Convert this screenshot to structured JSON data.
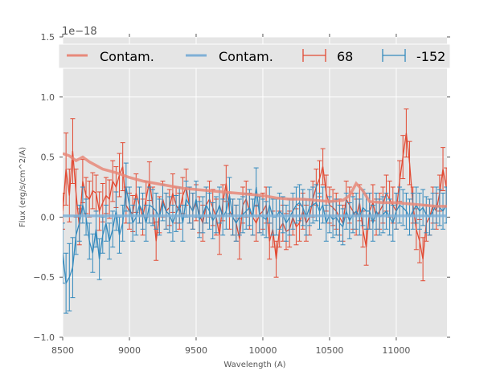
{
  "chart_data": {
    "type": "line",
    "title": "",
    "xlabel": "Wavelength (A)",
    "ylabel": "Flux (erg/s/cm^2/A)",
    "offset_label": "1e−18",
    "xlim": [
      8500,
      11380
    ],
    "ylim": [
      -1.0,
      1.5
    ],
    "xticks": [
      "8500",
      "9000",
      "9500",
      "10000",
      "10500",
      "11000"
    ],
    "xtick_values": [
      8500,
      9000,
      9500,
      10000,
      10500,
      11000
    ],
    "yticks": [
      "−1.0",
      "−0.5",
      "0.0",
      "0.5",
      "1.0",
      "1.5"
    ],
    "ytick_values": [
      -1.0,
      -0.5,
      0.0,
      0.5,
      1.0,
      1.5
    ],
    "grid": true,
    "legend": {
      "placement": "top",
      "entries": [
        "Contam.",
        "Contam.",
        "68",
        "-152"
      ]
    },
    "colors": {
      "red": "#E24A33",
      "blue": "#348ABD",
      "red_contam": "#E8897A",
      "blue_contam": "#7FB0D6",
      "bg": "#E5E5E5"
    },
    "series": [
      {
        "name": "Contam.",
        "kind": "contam",
        "color": "#E8897A",
        "x": [
          8500,
          8550,
          8600,
          8650,
          8700,
          8750,
          8800,
          8900,
          9000,
          9100,
          9200,
          9300,
          9400,
          9500,
          9600,
          9700,
          9800,
          9900,
          10000,
          10100,
          10200,
          10300,
          10400,
          10500,
          10600,
          10650,
          10700,
          10750,
          10800,
          10900,
          11000,
          11100,
          11200,
          11300,
          11380
        ],
        "y": [
          0.53,
          0.51,
          0.47,
          0.5,
          0.46,
          0.43,
          0.4,
          0.37,
          0.33,
          0.3,
          0.28,
          0.26,
          0.24,
          0.23,
          0.22,
          0.21,
          0.2,
          0.19,
          0.18,
          0.16,
          0.15,
          0.15,
          0.14,
          0.13,
          0.14,
          0.18,
          0.28,
          0.22,
          0.13,
          0.12,
          0.12,
          0.11,
          0.1,
          0.09,
          0.09
        ]
      },
      {
        "name": "Contam.",
        "kind": "contam",
        "color": "#7FB0D6",
        "x": [
          8500,
          9000,
          9500,
          10000,
          10500,
          11000,
          11380
        ],
        "y": [
          0.01,
          0.01,
          0.01,
          0.01,
          0.01,
          0.01,
          0.01
        ]
      },
      {
        "name": "68",
        "kind": "errorbar",
        "color": "#E24A33",
        "x": [
          8500,
          8525,
          8550,
          8575,
          8600,
          8625,
          8650,
          8675,
          8700,
          8725,
          8750,
          8775,
          8800,
          8825,
          8850,
          8875,
          8900,
          8925,
          8950,
          8975,
          9000,
          9025,
          9050,
          9075,
          9100,
          9125,
          9150,
          9175,
          9200,
          9225,
          9250,
          9275,
          9300,
          9325,
          9350,
          9375,
          9400,
          9425,
          9450,
          9475,
          9500,
          9525,
          9550,
          9575,
          9600,
          9625,
          9650,
          9675,
          9700,
          9725,
          9750,
          9775,
          9800,
          9825,
          9850,
          9875,
          9900,
          9925,
          9950,
          9975,
          10000,
          10025,
          10050,
          10075,
          10100,
          10125,
          10150,
          10175,
          10200,
          10225,
          10250,
          10275,
          10300,
          10325,
          10350,
          10375,
          10400,
          10425,
          10450,
          10475,
          10500,
          10525,
          10550,
          10575,
          10600,
          10625,
          10650,
          10675,
          10700,
          10725,
          10750,
          10775,
          10800,
          10825,
          10850,
          10875,
          10900,
          10925,
          10950,
          10975,
          11000,
          11025,
          11050,
          11075,
          11100,
          11125,
          11150,
          11175,
          11200,
          11225,
          11250,
          11275,
          11300,
          11325,
          11350,
          11375
        ],
        "y": [
          0.05,
          0.4,
          0.18,
          0.55,
          0.2,
          -0.08,
          0.3,
          0.18,
          0.15,
          0.22,
          0.2,
          0.05,
          0.12,
          0.18,
          0.15,
          0.3,
          0.25,
          0.35,
          0.42,
          0.1,
          0.05,
          0.03,
          0.2,
          0.1,
          0.0,
          0.15,
          0.3,
          0.1,
          -0.2,
          0.02,
          0.15,
          0.05,
          0.08,
          0.2,
          0.1,
          0.05,
          0.18,
          0.25,
          0.1,
          0.05,
          0.12,
          0.02,
          -0.05,
          0.1,
          0.15,
          0.08,
          0.0,
          -0.15,
          0.12,
          0.28,
          0.05,
          0.0,
          -0.05,
          -0.18,
          0.1,
          0.15,
          0.05,
          0.0,
          -0.05,
          0.02,
          0.05,
          0.1,
          -0.2,
          -0.1,
          -0.35,
          -0.1,
          -0.05,
          -0.12,
          -0.1,
          0.0,
          -0.08,
          -0.05,
          0.05,
          -0.05,
          0.0,
          0.15,
          0.25,
          0.32,
          0.42,
          0.2,
          0.1,
          0.08,
          0.05,
          0.0,
          -0.05,
          0.15,
          0.1,
          0.05,
          0.0,
          0.12,
          -0.1,
          -0.25,
          0.05,
          0.12,
          0.0,
          0.05,
          0.1,
          0.2,
          0.15,
          0.1,
          0.05,
          0.3,
          0.5,
          0.7,
          0.45,
          0.1,
          -0.1,
          -0.2,
          -0.35,
          -0.05,
          0.0,
          0.1,
          0.05,
          0.2,
          0.4,
          0.25
        ],
        "err": [
          0.15,
          0.3,
          0.22,
          0.27,
          0.2,
          0.15,
          0.18,
          0.15,
          0.15,
          0.15,
          0.15,
          0.16,
          0.16,
          0.15,
          0.16,
          0.17,
          0.17,
          0.18,
          0.2,
          0.15,
          0.15,
          0.15,
          0.16,
          0.15,
          0.15,
          0.15,
          0.16,
          0.15,
          0.16,
          0.15,
          0.15,
          0.15,
          0.15,
          0.16,
          0.15,
          0.15,
          0.15,
          0.15,
          0.15,
          0.15,
          0.15,
          0.15,
          0.15,
          0.15,
          0.15,
          0.15,
          0.15,
          0.16,
          0.15,
          0.15,
          0.15,
          0.15,
          0.15,
          0.17,
          0.15,
          0.15,
          0.15,
          0.15,
          0.15,
          0.15,
          0.15,
          0.15,
          0.15,
          0.15,
          0.15,
          0.15,
          0.15,
          0.15,
          0.15,
          0.15,
          0.15,
          0.15,
          0.15,
          0.15,
          0.15,
          0.15,
          0.15,
          0.15,
          0.15,
          0.15,
          0.15,
          0.15,
          0.15,
          0.15,
          0.15,
          0.15,
          0.15,
          0.15,
          0.15,
          0.15,
          0.15,
          0.15,
          0.15,
          0.15,
          0.15,
          0.15,
          0.15,
          0.15,
          0.15,
          0.15,
          0.15,
          0.17,
          0.18,
          0.2,
          0.18,
          0.15,
          0.17,
          0.18,
          0.18,
          0.15,
          0.15,
          0.15,
          0.15,
          0.15,
          0.18,
          0.16
        ]
      },
      {
        "name": "-152",
        "kind": "errorbar",
        "color": "#348ABD",
        "x": [
          8500,
          8525,
          8550,
          8575,
          8600,
          8625,
          8650,
          8675,
          8700,
          8725,
          8750,
          8775,
          8800,
          8825,
          8850,
          8875,
          8900,
          8925,
          8950,
          8975,
          9000,
          9025,
          9050,
          9075,
          9100,
          9125,
          9150,
          9175,
          9200,
          9225,
          9250,
          9275,
          9300,
          9325,
          9350,
          9375,
          9400,
          9425,
          9450,
          9475,
          9500,
          9525,
          9550,
          9575,
          9600,
          9625,
          9650,
          9675,
          9700,
          9725,
          9750,
          9775,
          9800,
          9825,
          9850,
          9875,
          9900,
          9925,
          9950,
          9975,
          10000,
          10025,
          10050,
          10075,
          10100,
          10125,
          10150,
          10175,
          10200,
          10225,
          10250,
          10275,
          10300,
          10325,
          10350,
          10375,
          10400,
          10425,
          10450,
          10475,
          10500,
          10525,
          10550,
          10575,
          10600,
          10625,
          10650,
          10675,
          10700,
          10725,
          10750,
          10775,
          10800,
          10825,
          10850,
          10875,
          10900,
          10925,
          10950,
          10975,
          11000,
          11025,
          11050,
          11075,
          11100,
          11125,
          11150,
          11175,
          11200,
          11225,
          11250,
          11275,
          11300,
          11325,
          11350,
          11375
        ],
        "y": [
          -0.3,
          -0.55,
          -0.5,
          -0.42,
          -0.15,
          -0.05,
          0.1,
          0.0,
          -0.2,
          -0.3,
          -0.1,
          -0.35,
          -0.15,
          -0.05,
          -0.2,
          -0.1,
          0.05,
          -0.15,
          -0.05,
          0.25,
          0.1,
          -0.05,
          0.0,
          0.1,
          0.05,
          -0.05,
          0.1,
          0.08,
          0.05,
          0.0,
          0.12,
          0.05,
          0.02,
          -0.05,
          0.03,
          0.1,
          -0.05,
          0.15,
          0.1,
          0.05,
          0.15,
          -0.02,
          0.02,
          0.1,
          0.05,
          -0.03,
          0.02,
          0.1,
          0.0,
          0.05,
          0.18,
          0.0,
          -0.05,
          0.0,
          0.02,
          0.05,
          0.08,
          0.0,
          0.25,
          0.02,
          0.0,
          -0.02,
          0.1,
          0.0,
          0.0,
          0.05,
          0.02,
          -0.05,
          0.0,
          0.05,
          0.1,
          0.12,
          0.08,
          0.0,
          0.08,
          0.1,
          0.12,
          0.05,
          0.1,
          -0.05,
          0.02,
          -0.02,
          0.0,
          -0.05,
          -0.08,
          0.05,
          -0.03,
          0.02,
          0.05,
          0.0,
          0.08,
          0.05,
          0.05,
          -0.05,
          0.05,
          0.0,
          0.02,
          0.05,
          0.0,
          -0.05,
          0.05,
          0.1,
          0.08,
          0.05,
          0.0,
          0.05,
          0.1,
          0.05,
          0.08,
          0.02,
          0.0,
          0.05,
          0.1,
          0.08,
          0.05,
          0.1
        ],
        "err": [
          0.25,
          0.25,
          0.28,
          0.25,
          0.16,
          0.15,
          0.15,
          0.15,
          0.15,
          0.16,
          0.15,
          0.17,
          0.15,
          0.15,
          0.15,
          0.15,
          0.16,
          0.15,
          0.15,
          0.2,
          0.15,
          0.15,
          0.15,
          0.15,
          0.15,
          0.15,
          0.15,
          0.15,
          0.15,
          0.15,
          0.15,
          0.15,
          0.15,
          0.15,
          0.15,
          0.15,
          0.15,
          0.15,
          0.15,
          0.15,
          0.15,
          0.15,
          0.15,
          0.15,
          0.15,
          0.15,
          0.15,
          0.15,
          0.15,
          0.15,
          0.15,
          0.15,
          0.15,
          0.15,
          0.15,
          0.15,
          0.15,
          0.15,
          0.16,
          0.15,
          0.15,
          0.15,
          0.15,
          0.15,
          0.15,
          0.15,
          0.15,
          0.15,
          0.15,
          0.15,
          0.15,
          0.15,
          0.15,
          0.15,
          0.15,
          0.15,
          0.15,
          0.15,
          0.15,
          0.15,
          0.15,
          0.15,
          0.15,
          0.15,
          0.15,
          0.15,
          0.15,
          0.15,
          0.15,
          0.15,
          0.15,
          0.15,
          0.15,
          0.15,
          0.15,
          0.15,
          0.15,
          0.15,
          0.15,
          0.15,
          0.15,
          0.15,
          0.15,
          0.15,
          0.15,
          0.15,
          0.15,
          0.15,
          0.15,
          0.15,
          0.15,
          0.15,
          0.15,
          0.15,
          0.15,
          0.15
        ]
      }
    ]
  }
}
